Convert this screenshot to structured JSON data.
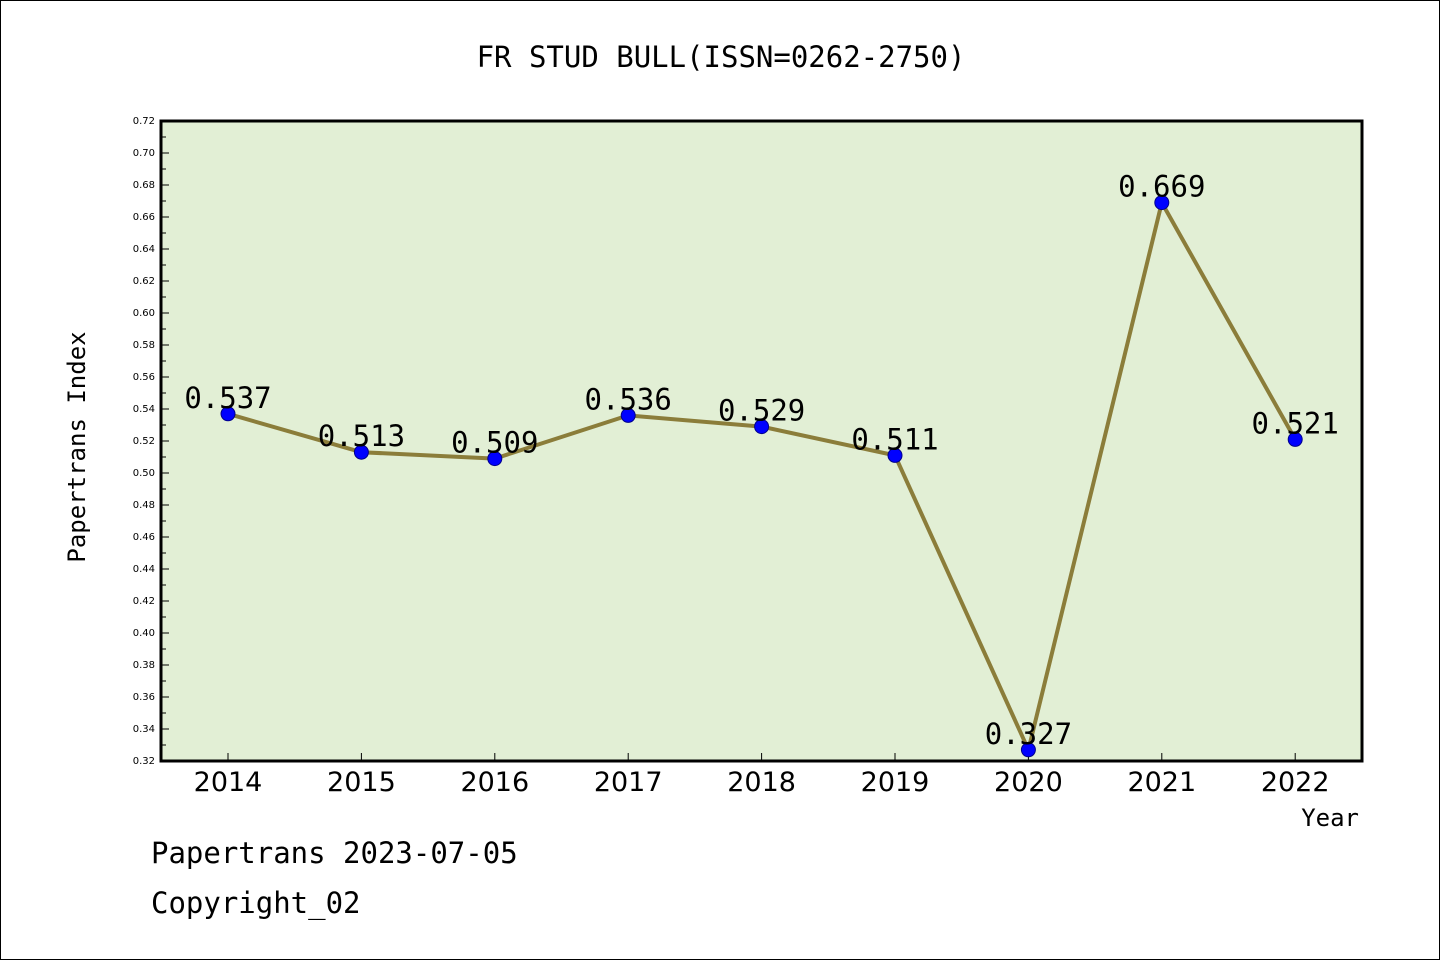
{
  "chart_data": {
    "type": "line",
    "title": "FR STUD BULL(ISSN=0262-2750)",
    "xlabel": "Year",
    "ylabel": "Papertrans Index",
    "categories": [
      "2014",
      "2015",
      "2016",
      "2017",
      "2018",
      "2019",
      "2020",
      "2021",
      "2022"
    ],
    "series": [
      {
        "values": [
          0.537,
          0.513,
          0.509,
          0.536,
          0.529,
          0.511,
          0.327,
          0.669,
          0.521
        ]
      }
    ],
    "data_labels": [
      "0.537",
      "0.513",
      "0.509",
      "0.536",
      "0.529",
      "0.511",
      "0.327",
      "0.669",
      "0.521"
    ],
    "ylim": [
      0.32,
      0.72
    ],
    "yticks": [
      "0.32",
      "0.34",
      "0.36",
      "0.38",
      "0.40",
      "0.42",
      "0.44",
      "0.46",
      "0.48",
      "0.50",
      "0.52",
      "0.54",
      "0.56",
      "0.58",
      "0.60",
      "0.62",
      "0.64",
      "0.66",
      "0.68",
      "0.70",
      "0.72"
    ],
    "grid": false,
    "colors": {
      "plot_background": "#e2efd5",
      "line": "#8b7d3a",
      "marker": "#0000ff"
    }
  },
  "footer": {
    "line1": "Papertrans 2023-07-05",
    "line2": "Copyright_02"
  }
}
